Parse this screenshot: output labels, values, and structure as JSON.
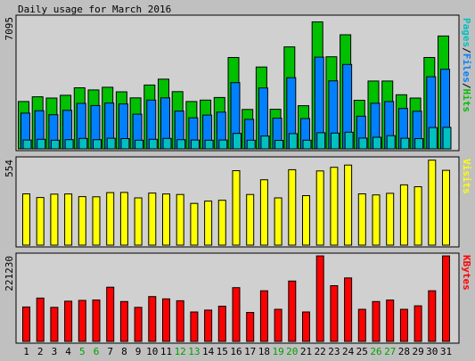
{
  "chart_data": [
    {
      "type": "bar",
      "title": "Daily usage for March 2016",
      "y_max_label": "7095",
      "ylim": [
        0,
        7095
      ],
      "legend_parts": [
        {
          "text": "Pages",
          "color": "#00c0c0"
        },
        {
          "text": "/",
          "color": "#000000"
        },
        {
          "text": "Files",
          "color": "#0080ff"
        },
        {
          "text": "/",
          "color": "#000000"
        },
        {
          "text": "Hits",
          "color": "#00c000"
        }
      ],
      "series": [
        {
          "name": "Hits",
          "color": "#00c000",
          "values": [
            2580,
            2840,
            2770,
            2920,
            3330,
            3210,
            3360,
            3110,
            2780,
            3480,
            3800,
            3120,
            2580,
            2660,
            2800,
            4980,
            2150,
            4460,
            2160,
            5560,
            2350,
            6920,
            5020,
            6220,
            2650,
            3700,
            3700,
            2950,
            2770,
            4980,
            6150
          ]
        },
        {
          "name": "Files",
          "color": "#0080ff",
          "values": [
            1950,
            2080,
            1860,
            2100,
            2480,
            2360,
            2500,
            2450,
            1890,
            2660,
            2780,
            2060,
            1690,
            1840,
            2000,
            3610,
            1610,
            3320,
            1670,
            3880,
            1650,
            5000,
            3710,
            4600,
            1780,
            2490,
            2580,
            2200,
            2050,
            3930,
            4340
          ]
        },
        {
          "name": "Pages",
          "color": "#00c0c0",
          "values": [
            480,
            520,
            470,
            500,
            570,
            500,
            580,
            560,
            470,
            520,
            570,
            500,
            480,
            470,
            480,
            840,
            470,
            700,
            460,
            830,
            470,
            880,
            860,
            910,
            590,
            630,
            720,
            580,
            560,
            1160,
            1170
          ]
        }
      ]
    },
    {
      "type": "bar",
      "y_max_label": "554",
      "ylim": [
        0,
        554
      ],
      "legend_parts": [
        {
          "text": "Visits",
          "color": "#ffff00"
        }
      ],
      "series": [
        {
          "name": "Visits",
          "color": "#ffff00",
          "values": [
            332,
            308,
            330,
            331,
            314,
            313,
            340,
            341,
            306,
            337,
            331,
            328,
            270,
            285,
            290,
            482,
            328,
            423,
            306,
            488,
            320,
            480,
            504,
            518,
            332,
            325,
            335,
            390,
            378,
            550,
            484
          ]
        }
      ]
    },
    {
      "type": "bar",
      "y_max_label": "221230",
      "ylim": [
        0,
        221230
      ],
      "legend_parts": [
        {
          "text": "KBytes",
          "color": "#ff0000"
        }
      ],
      "series": [
        {
          "name": "KBytes",
          "color": "#ff0000",
          "values": [
            89000,
            112000,
            88000,
            104000,
            106000,
            107000,
            140000,
            103000,
            88000,
            116000,
            110000,
            105000,
            76000,
            81000,
            91000,
            139000,
            75000,
            131000,
            83000,
            156000,
            76000,
            221000,
            144000,
            164000,
            83000,
            103000,
            107000,
            83000,
            92000,
            131000,
            221000
          ]
        }
      ]
    }
  ],
  "days": [
    "1",
    "2",
    "3",
    "4",
    "5",
    "6",
    "7",
    "8",
    "9",
    "10",
    "11",
    "12",
    "13",
    "14",
    "15",
    "16",
    "17",
    "18",
    "19",
    "20",
    "21",
    "22",
    "23",
    "24",
    "25",
    "26",
    "27",
    "28",
    "29",
    "30",
    "31"
  ],
  "weekend_days": [
    "5",
    "6",
    "12",
    "13",
    "19",
    "20",
    "26",
    "27"
  ],
  "colors": {
    "background": "#c0c0c0",
    "panel": "#d0d0d0",
    "weekday_label": "#000000",
    "weekend_label": "#00a000",
    "bar_outline": "#000000"
  }
}
